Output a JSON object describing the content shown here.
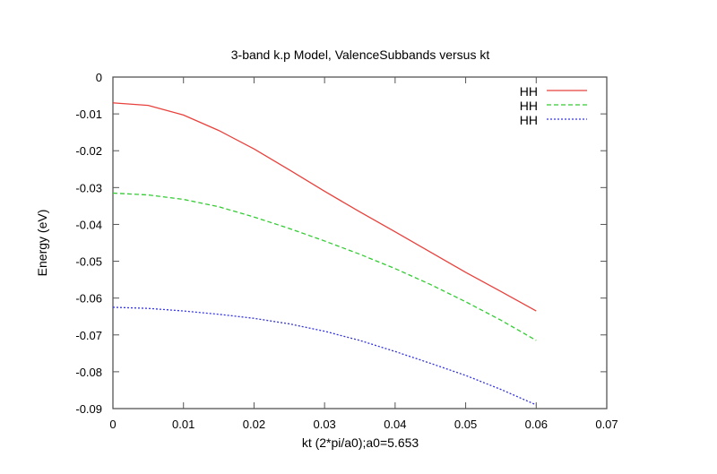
{
  "chart_data": {
    "type": "line",
    "title": "3-band k.p Model, ValenceSubbands versus kt",
    "xlabel": "kt (2*pi/a0);a0=5.653",
    "ylabel": "Energy (eV)",
    "xlim": [
      0,
      0.07
    ],
    "ylim": [
      -0.09,
      0
    ],
    "xticks": [
      0,
      0.01,
      0.02,
      0.03,
      0.04,
      0.05,
      0.06,
      0.07
    ],
    "xtick_labels": [
      "0",
      "0.01",
      "0.02",
      "0.03",
      "0.04",
      "0.05",
      "0.06",
      "0.07"
    ],
    "yticks": [
      0,
      -0.01,
      -0.02,
      -0.03,
      -0.04,
      -0.05,
      -0.06,
      -0.07,
      -0.08,
      -0.09
    ],
    "ytick_labels": [
      "0",
      "-0.01",
      "-0.02",
      "-0.03",
      "-0.04",
      "-0.05",
      "-0.06",
      "-0.07",
      "-0.08",
      "-0.09"
    ],
    "grid": false,
    "legend_position": "top-right",
    "x": [
      0,
      0.005,
      0.01,
      0.015,
      0.02,
      0.025,
      0.03,
      0.035,
      0.04,
      0.045,
      0.05,
      0.055,
      0.06
    ],
    "series": [
      {
        "name": "HH",
        "color": "#e8413c",
        "dash": "solid",
        "values": [
          -0.007,
          -0.0077,
          -0.0103,
          -0.0145,
          -0.0195,
          -0.0252,
          -0.031,
          -0.0366,
          -0.042,
          -0.0475,
          -0.053,
          -0.0582,
          -0.0635
        ]
      },
      {
        "name": "HH",
        "color": "#33cc33",
        "dash": "dashed",
        "values": [
          -0.0315,
          -0.032,
          -0.0332,
          -0.0352,
          -0.038,
          -0.0411,
          -0.0445,
          -0.0481,
          -0.052,
          -0.0563,
          -0.061,
          -0.066,
          -0.0715
        ]
      },
      {
        "name": "HH",
        "color": "#3333dd",
        "dash": "dotted",
        "values": [
          -0.0625,
          -0.0628,
          -0.0635,
          -0.0644,
          -0.0655,
          -0.067,
          -0.069,
          -0.0715,
          -0.0745,
          -0.0777,
          -0.081,
          -0.0848,
          -0.089
        ]
      }
    ]
  }
}
